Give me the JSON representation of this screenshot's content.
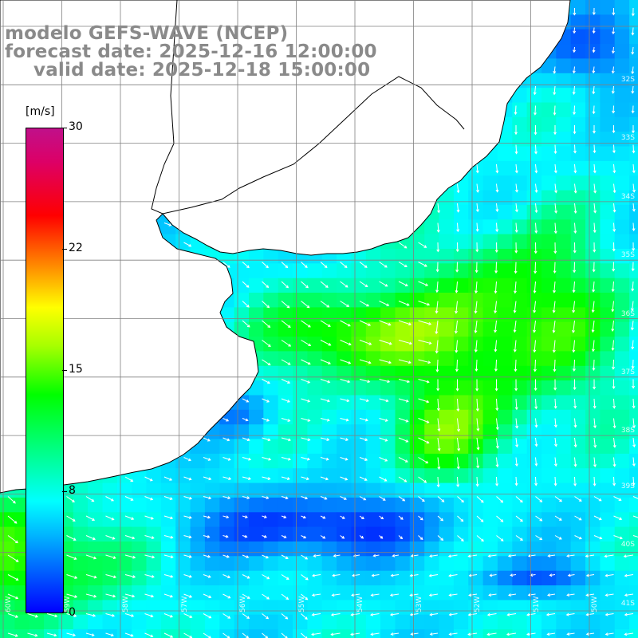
{
  "title": {
    "line1": "modelo GEFS-WAVE (NCEP)",
    "line2": "forecast date: 2025-12-16 12:00:00",
    "line3": "valid date: 2025-12-18 15:00:00"
  },
  "colorbar": {
    "unit": "[m/s]",
    "ticks": [
      "30",
      "22",
      "15",
      "8",
      "0"
    ],
    "range": [
      0,
      30
    ]
  },
  "grid": {
    "lat_labels": [
      "32S",
      "33S",
      "34S",
      "35S",
      "36S",
      "37S",
      "38S",
      "39S",
      "40S",
      "41S"
    ],
    "lon_labels": [
      "60W",
      "59W",
      "58W",
      "57W",
      "56W",
      "55W",
      "54W",
      "53W",
      "52W",
      "51W",
      "50W"
    ]
  },
  "colors": {
    "land": "#ffffff",
    "coast": "#000000",
    "grid": "#808080",
    "arrows": "#ffffff",
    "title": "#8a8a8a"
  }
}
